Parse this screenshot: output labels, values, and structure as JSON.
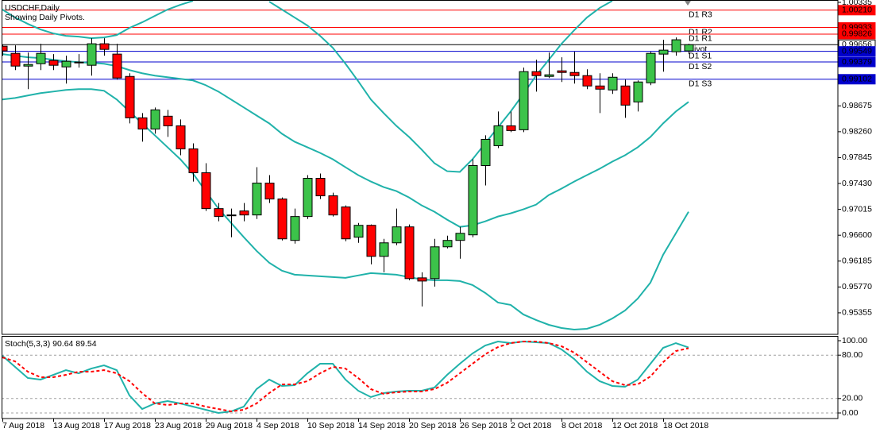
{
  "chart_data": [
    {
      "type": "candlestick",
      "title": "USDCHF,Daily",
      "subtitle": "Showing Daily Pivots.",
      "categories": [
        "7 Aug 2018",
        null,
        null,
        null,
        "13 Aug 2018",
        null,
        null,
        null,
        "17 Aug 2018",
        null,
        null,
        null,
        "23 Aug 2018",
        null,
        null,
        null,
        "29 Aug 2018",
        null,
        null,
        null,
        "4 Sep 2018",
        null,
        null,
        null,
        "10 Sep 2018",
        null,
        null,
        null,
        "14 Sep 2018",
        null,
        null,
        null,
        "20 Sep 2018",
        null,
        null,
        null,
        "26 Sep 2018",
        null,
        null,
        null,
        "2 Oct 2018",
        null,
        null,
        null,
        "8 Oct 2018",
        null,
        null,
        null,
        "12 Oct 2018",
        null,
        null,
        null,
        "18 Oct 2018",
        null,
        null
      ],
      "open": [
        0.99632,
        0.99517,
        0.99313,
        0.99351,
        0.99403,
        0.993,
        0.99377,
        0.99326,
        0.99671,
        0.99505,
        0.99147,
        0.98483,
        0.98304,
        0.98509,
        0.98355,
        0.97985,
        0.97602,
        0.97027,
        0.96925,
        0.96989,
        0.96925,
        0.97436,
        0.97181,
        0.96517,
        0.969,
        0.97513,
        0.97232,
        0.97053,
        0.96568,
        0.96759,
        0.96261,
        0.96478,
        0.96734,
        0.95916,
        0.95904,
        0.96414,
        0.96517,
        0.96606,
        0.97717,
        0.98036,
        0.98355,
        0.98292,
        0.99224,
        0.99147,
        0.99237,
        0.99211,
        0.9916,
        0.98994,
        0.9893,
        0.98994,
        0.98738,
        0.99045,
        0.99505,
        0.99543,
        0.99556
      ],
      "high": [
        0.99658,
        0.99645,
        0.9953,
        0.99671,
        0.99505,
        0.99479,
        0.99505,
        0.9976,
        0.9976,
        0.99671,
        0.99198,
        0.9856,
        0.98649,
        0.98611,
        0.98458,
        0.98074,
        0.97755,
        0.97117,
        0.97027,
        0.97117,
        0.97691,
        0.97564,
        0.97206,
        0.97027,
        0.97564,
        0.97589,
        0.97283,
        0.97078,
        0.96797,
        0.96772,
        0.96542,
        0.97027,
        0.96772,
        0.96006,
        0.96542,
        0.96593,
        0.96734,
        0.97819,
        0.98202,
        0.98585,
        0.98585,
        0.99288,
        0.99415,
        0.9953,
        0.99454,
        0.99543,
        0.99262,
        0.99198,
        0.99198,
        0.99096,
        0.99083,
        0.99543,
        0.99735,
        0.99773,
        0.99671
      ],
      "low": [
        0.99479,
        0.99249,
        0.98943,
        0.99249,
        0.99249,
        0.99032,
        0.99288,
        0.9916,
        0.99479,
        0.99096,
        0.98394,
        0.981,
        0.98228,
        0.98177,
        0.97883,
        0.97461,
        0.96989,
        0.96823,
        0.96568,
        0.96823,
        0.96861,
        0.97117,
        0.96517,
        0.96465,
        0.96861,
        0.97181,
        0.969,
        0.96504,
        0.96478,
        0.96133,
        0.96006,
        0.9644,
        0.95878,
        0.95457,
        0.95776,
        0.96389,
        0.96223,
        0.96568,
        0.97398,
        0.97998,
        0.98253,
        0.98253,
        0.98904,
        0.99122,
        0.99058,
        0.99032,
        0.98943,
        0.9856,
        0.98866,
        0.98483,
        0.98585,
        0.99007,
        0.99224,
        0.99479,
        0.99505
      ],
      "close": [
        0.99556,
        0.99313,
        0.99339,
        0.99517,
        0.99326,
        0.9939,
        0.99364,
        0.99671,
        0.99581,
        0.99122,
        0.98483,
        0.98304,
        0.98611,
        0.98355,
        0.97985,
        0.97602,
        0.97027,
        0.969,
        0.96912,
        0.96925,
        0.97436,
        0.97181,
        0.96542,
        0.969,
        0.97513,
        0.97232,
        0.96925,
        0.96542,
        0.96759,
        0.96261,
        0.96478,
        0.96734,
        0.95904,
        0.95865,
        0.96414,
        0.96517,
        0.96631,
        0.97717,
        0.98138,
        0.98355,
        0.98279,
        0.99224,
        0.9916,
        0.99173,
        0.99211,
        0.9916,
        0.98994,
        0.98943,
        0.99134,
        0.98687,
        0.99058,
        0.99517,
        0.99569,
        0.99735,
        0.99656
      ],
      "up_color": "#3cc34a",
      "down_color": "#ff0000",
      "overlays": [
        {
          "color": "#20b2aa",
          "values": [
            1.0022,
            1.00092,
            0.9999,
            0.99901,
            0.99837,
            0.99798,
            0.99786,
            0.9976,
            0.99773,
            0.99811,
            0.99926,
            1.00015,
            1.00118,
            1.0022,
            1.00296,
            1.0036,
            null,
            null,
            null,
            null,
            null,
            1.00347,
            1.0022,
            1.00092,
            0.99964,
            0.99798,
            0.99607,
            0.99351,
            0.99071,
            0.98777,
            0.9856,
            0.98355,
            0.98177,
            0.97972,
            0.97755,
            0.97627,
            0.97615,
            0.97819,
            0.98074,
            0.9833,
            0.98585,
            0.98866,
            0.9916,
            0.99415,
            0.99671,
            0.99888,
            1.00092,
            1.00245,
            1.0036,
            null,
            null,
            null,
            null,
            null,
            null
          ]
        },
        {
          "color": "#20b2aa",
          "values": [
            0.99505,
            0.99479,
            0.99454,
            0.99441,
            0.99415,
            0.9939,
            0.99377,
            0.99364,
            0.99351,
            0.99313,
            0.99249,
            0.99198,
            0.9916,
            0.99134,
            0.99109,
            0.99083,
            0.99007,
            0.98904,
            0.98777,
            0.98649,
            0.98521,
            0.98394,
            0.98228,
            0.981,
            0.98011,
            0.97921,
            0.97819,
            0.97691,
            0.97564,
            0.97461,
            0.97372,
            0.97308,
            0.97206,
            0.97078,
            0.96976,
            0.96849,
            0.96734,
            0.96759,
            0.96823,
            0.969,
            0.96951,
            0.97015,
            0.97091,
            0.97244,
            0.97347,
            0.97461,
            0.97564,
            0.97666,
            0.97781,
            0.97883,
            0.98011,
            0.98177,
            0.98394,
            0.98585,
            0.98738
          ]
        },
        {
          "color": "#20b2aa",
          "values": [
            0.98777,
            0.98802,
            0.98841,
            0.98879,
            0.98904,
            0.9893,
            0.98943,
            0.98943,
            0.98917,
            0.98777,
            0.98585,
            0.98394,
            0.98202,
            0.98011,
            0.97819,
            0.97589,
            0.97308,
            0.97027,
            0.96797,
            0.96568,
            0.9635,
            0.96159,
            0.96031,
            0.95967,
            0.95955,
            0.95942,
            0.95929,
            0.95916,
            0.95955,
            0.95993,
            0.9598,
            0.95967,
            0.95929,
            0.95891,
            0.95878,
            0.95878,
            0.95865,
            0.95801,
            0.95674,
            0.9552,
            0.95482,
            0.95329,
            0.9524,
            0.95163,
            0.95112,
            0.95086,
            0.95099,
            0.95163,
            0.95265,
            0.95393,
            0.95584,
            0.9584,
            0.96287,
            0.96631,
            0.96976
          ]
        }
      ],
      "levels": {
        "names": [
          "D1 R3",
          "D1 R2",
          "D1 R1",
          "Pivot",
          "D1 S1",
          "D1 S2",
          "D1 S3"
        ],
        "values": [
          1.0021,
          0.99933,
          0.99826,
          0.99656,
          0.99549,
          0.99379,
          0.99102
        ],
        "value_labels": [
          "1.00210",
          "0.99933",
          "0.99826",
          "0.99656",
          "0.99549",
          "0.99379",
          "0.99102"
        ],
        "colors": [
          "#ff0000",
          "#ff0000",
          "#ff0000",
          "#000000",
          "#0000cd",
          "#0000cd",
          "#0000cd"
        ]
      },
      "ylim": [
        0.9501,
        1.00373
      ],
      "yticks": [
        1.00335,
        0.98675,
        {
          "value": 0.9826,
          "label": "0.98260"
        },
        0.97845,
        {
          "value": 0.9743,
          "label": "0.97430"
        },
        0.97015,
        {
          "value": 0.966,
          "label": "0.96600"
        },
        0.96185,
        {
          "value": 0.9577,
          "label": "0.95770"
        },
        0.95355
      ]
    },
    {
      "type": "line",
      "title": "Stoch(5,3,3) 90.64 89.54",
      "series": [
        {
          "color": "#20b2aa",
          "dash": false,
          "values": [
            79.1,
            63.7,
            48.4,
            46.2,
            52.7,
            59.3,
            54.9,
            61.5,
            65.9,
            59.3,
            24.2,
            5.5,
            13.2,
            16.5,
            13.2,
            8.8,
            4.4,
            0,
            2.2,
            8.8,
            33.0,
            46.2,
            37.4,
            38.5,
            54.9,
            68.1,
            68.1,
            46.2,
            30.8,
            22.0,
            27.5,
            29.7,
            30.8,
            30.8,
            35.2,
            52.7,
            68.1,
            82.4,
            93.4,
            98.9,
            96.7,
            98.9,
            97.8,
            96.7,
            87.9,
            74.7,
            57.1,
            44.0,
            37.4,
            36.3,
            46.2,
            68.1,
            90.1,
            96.7,
            90.64
          ]
        },
        {
          "color": "#ff0000",
          "dash": true,
          "values": [
            76.9,
            71.4,
            57.1,
            49.5,
            49.5,
            52.7,
            57.1,
            57.1,
            59.3,
            54.9,
            44.0,
            27.5,
            13.2,
            11.0,
            13.2,
            13.2,
            8.8,
            5.5,
            2.2,
            4.4,
            13.2,
            27.5,
            39.6,
            39.6,
            44.0,
            54.9,
            63.7,
            61.5,
            48.4,
            33.0,
            26.4,
            28.6,
            29.7,
            29.7,
            33.0,
            41.8,
            54.9,
            68.1,
            81.3,
            91.2,
            96.7,
            98.9,
            98.9,
            96.7,
            92.3,
            83.5,
            70.3,
            57.1,
            44.0,
            38.5,
            39.6,
            50.5,
            70.3,
            85.7,
            89.54
          ]
        }
      ],
      "ylim": [
        -7.69,
        106.59
      ],
      "yticks": [
        {
          "value": 100,
          "label": "100.00"
        },
        {
          "value": 80,
          "label": "80.00"
        },
        {
          "value": 20,
          "label": "20.00"
        },
        {
          "value": 0,
          "label": "0.00"
        }
      ]
    }
  ]
}
